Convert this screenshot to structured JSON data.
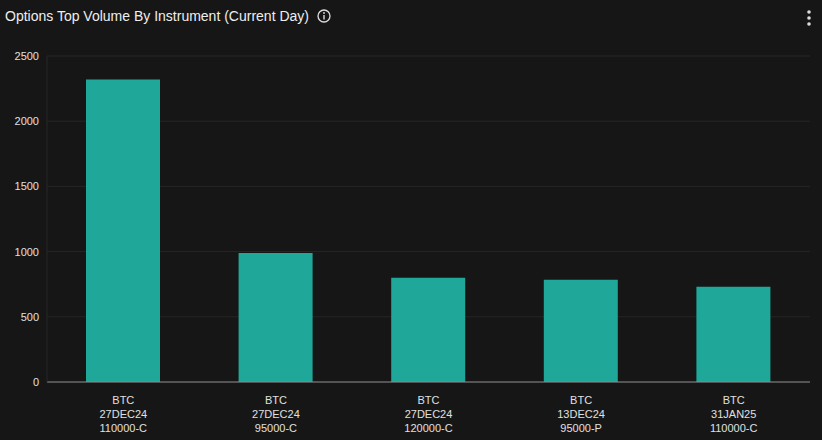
{
  "chart_data": {
    "type": "bar",
    "title": "Options Top Volume By Instrument (Current Day)",
    "categories": [
      "BTC\n27DEC24\n110000-C",
      "BTC\n27DEC24\n95000-C",
      "BTC\n27DEC24\n120000-C",
      "BTC\n13DEC24\n95000-P",
      "BTC\n31JAN25\n110000-C"
    ],
    "values": [
      2320,
      990,
      800,
      785,
      730
    ],
    "color": "#1fa89a",
    "ylim": [
      0,
      2500
    ],
    "yticks": [
      0,
      500,
      1000,
      1500,
      2000,
      2500
    ],
    "grid": true
  }
}
